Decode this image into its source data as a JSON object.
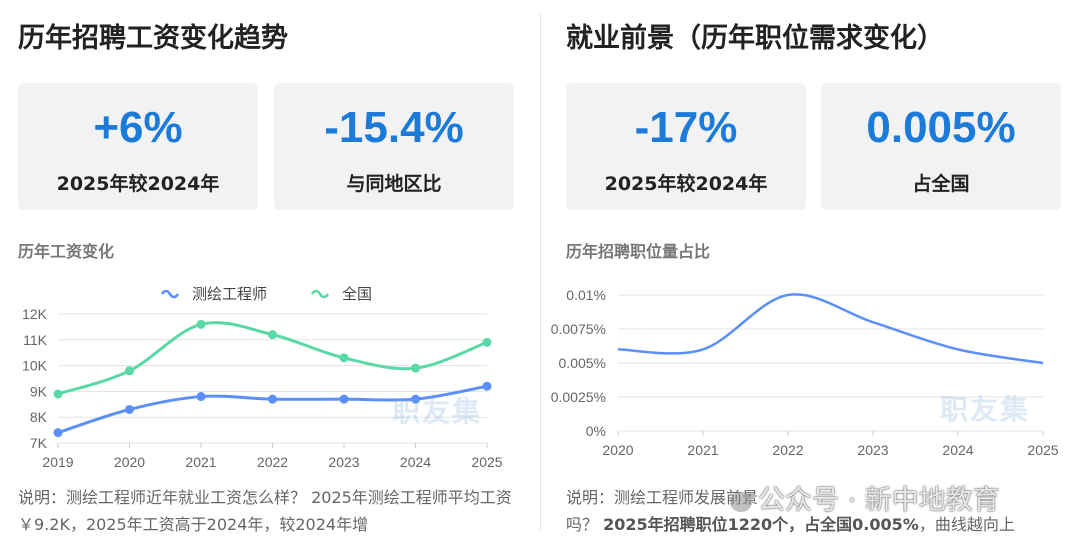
{
  "left": {
    "title": "历年招聘工资变化趋势",
    "stats": [
      {
        "value": "+6%",
        "label": "2025年较2024年"
      },
      {
        "value": "-15.4%",
        "label": "与同地区比"
      }
    ],
    "section_label": "历年工资变化",
    "watermark": "职友集",
    "caption": "说明：测绘工程师近年就业工资怎么样？ 2025年测绘工程师平均工资 ￥9.2K，2025年工资高于2024年，较2024年增"
  },
  "right": {
    "title": "就业前景（历年职位需求变化）",
    "stats": [
      {
        "value": "-17%",
        "label": "2025年较2024年"
      },
      {
        "value": "0.005%",
        "label": "占全国"
      }
    ],
    "section_label": "历年招聘职位量占比",
    "watermark": "职友集",
    "caption_prefix": "说明：测绘工程师发展前景",
    "caption_bold": "2025年招聘职位1220个，占全国0.005%",
    "caption_suffix": "，曲线越向上",
    "caption_line2_prefix": "吗？ "
  },
  "overlay_watermark": "公众号 · 新中地教育",
  "colors": {
    "accent": "#1c7bd9",
    "series_profession": "#5b8ff9",
    "series_national": "#5ad8a6",
    "card_bg": "#f2f2f2"
  },
  "chart_data": [
    {
      "type": "line",
      "title": "历年工资变化",
      "x": [
        "2019",
        "2020",
        "2021",
        "2022",
        "2023",
        "2024",
        "2025"
      ],
      "series": [
        {
          "name": "测绘工程师",
          "values": [
            7.4,
            8.3,
            8.8,
            8.7,
            8.7,
            8.7,
            9.2
          ]
        },
        {
          "name": "全国",
          "values": [
            8.9,
            9.8,
            11.6,
            11.2,
            10.3,
            9.9,
            10.9
          ]
        }
      ],
      "yticks": [
        "7K",
        "8K",
        "9K",
        "10K",
        "11K",
        "12K"
      ],
      "ylim": [
        7,
        12
      ],
      "legend": "top-center",
      "grid": true
    },
    {
      "type": "line",
      "title": "历年招聘职位量占比",
      "x": [
        "2020",
        "2021",
        "2022",
        "2023",
        "2024",
        "2025"
      ],
      "series": [
        {
          "values": [
            0.006,
            0.006,
            0.01,
            0.008,
            0.006,
            0.005
          ]
        }
      ],
      "yticks": [
        "0%",
        "0.0025%",
        "0.005%",
        "0.0075%",
        "0.01%"
      ],
      "ylim": [
        0,
        0.01
      ],
      "grid": true
    }
  ]
}
